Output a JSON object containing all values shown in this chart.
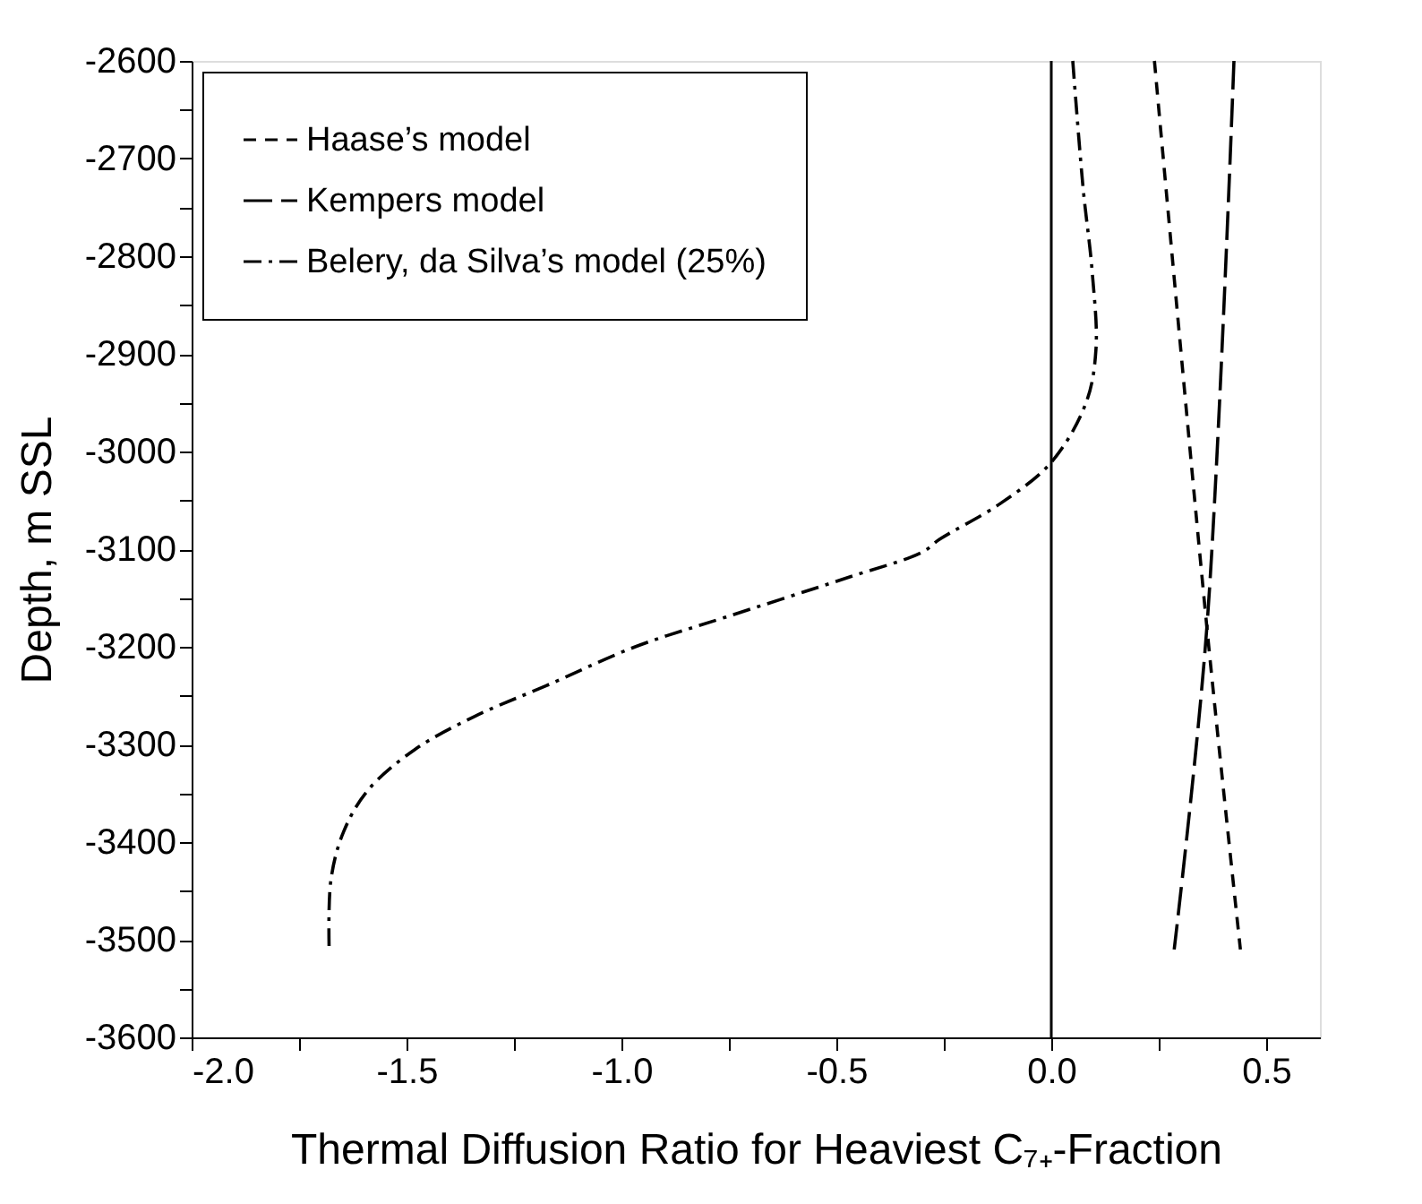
{
  "chart_data": {
    "type": "line",
    "xlabel": "Thermal Diffusion Ratio for Heaviest C₇₊-Fraction",
    "ylabel": "Depth, m SSL",
    "xlim": [
      -2.0,
      0.625
    ],
    "ylim": [
      -3600,
      -2600
    ],
    "xticks": [
      {
        "value": -2,
        "label": "-2.0"
      },
      {
        "value": -1.75,
        "label": null
      },
      -1.5,
      {
        "value": -1.25,
        "label": null
      },
      {
        "value": -1,
        "label": "-1.0"
      },
      {
        "value": -0.75,
        "label": null
      },
      -0.5,
      {
        "value": -0.25,
        "label": null
      },
      {
        "value": 0,
        "label": "0.0"
      },
      {
        "value": 0.25,
        "label": null
      },
      0.5
    ],
    "yticks": [
      -3600,
      {
        "value": -3550,
        "label": null
      },
      -3500,
      {
        "value": -3450,
        "label": null
      },
      -3400,
      {
        "value": -3350,
        "label": null
      },
      -3300,
      {
        "value": -3250,
        "label": null
      },
      -3200,
      {
        "value": -3150,
        "label": null
      },
      -3100,
      {
        "value": -3050,
        "label": null
      },
      -3000,
      {
        "value": -2950,
        "label": null
      },
      -2900,
      {
        "value": -2850,
        "label": null
      },
      -2800,
      {
        "value": -2750,
        "label": null
      },
      -2700,
      {
        "value": -2650,
        "label": null
      },
      -2600
    ],
    "grid": false,
    "legend": "top left",
    "marker": "none",
    "ref_lines": [
      {
        "axis": "x",
        "value": 0.0,
        "color": "#000000",
        "line_style": "solid"
      }
    ],
    "series": [
      {
        "name": "Haase’s model",
        "color": "#000000",
        "line_style": "dashed",
        "x": [
          0.24,
          0.362,
          0.44
        ],
        "values": [
          -2600,
          -3180,
          -3510
        ]
      },
      {
        "name": "Kempers model",
        "color": "#000000",
        "line_style": "longdashed",
        "x": [
          0.425,
          0.362,
          0.286
        ],
        "values": [
          -2600,
          -3180,
          -3510
        ]
      },
      {
        "name": "Belery, da Silva’s model (25%)",
        "color": "#000000",
        "line_style": "dashdot",
        "x": [
          0.05,
          0.074,
          0.095,
          0.104,
          0.081,
          0.0,
          -0.121,
          -0.26,
          -0.3,
          -0.48,
          -0.76,
          -0.968,
          -1.176,
          -1.34,
          -1.48,
          -1.59,
          -1.647,
          -1.676,
          -1.68
        ],
        "values": [
          -2600,
          -2730,
          -2815,
          -2895,
          -2950,
          -3011,
          -3054,
          -3090,
          -3103,
          -3130,
          -3170,
          -3200,
          -3240,
          -3271,
          -3305,
          -3347,
          -3390,
          -3439,
          -3512
        ]
      }
    ]
  }
}
